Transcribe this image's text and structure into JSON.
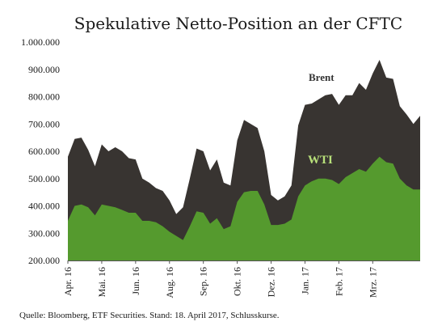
{
  "chart_data": {
    "type": "area",
    "title": "Spekulative Netto-Position an der CFTC",
    "xlabel": "",
    "ylabel": "",
    "ylim": [
      200000,
      1000000
    ],
    "yticks": [
      "200.000",
      "300.000",
      "400.000",
      "500.000",
      "600.000",
      "700.000",
      "800.000",
      "900.000",
      "1.000.000"
    ],
    "ytick_values": [
      200000,
      300000,
      400000,
      500000,
      600000,
      700000,
      800000,
      900000,
      1000000
    ],
    "x_tick_labels": [
      {
        "label": "Apr. 16",
        "index": 0
      },
      {
        "label": "Mai. 16",
        "index": 5
      },
      {
        "label": "Jun. 16",
        "index": 10
      },
      {
        "label": "Aug. 16",
        "index": 15
      },
      {
        "label": "Sep. 16",
        "index": 20
      },
      {
        "label": "Okt. 16",
        "index": 25
      },
      {
        "label": "Dez. 16",
        "index": 30
      },
      {
        "label": "Jan. 17",
        "index": 35
      },
      {
        "label": "Feb. 17",
        "index": 40
      },
      {
        "label": "Mrz. 17",
        "index": 45
      }
    ],
    "grid": false,
    "series": [
      {
        "name": "Brent",
        "color": "#383431",
        "values": [
          580000,
          645000,
          650000,
          605000,
          545000,
          625000,
          600000,
          615000,
          600000,
          575000,
          570000,
          500000,
          485000,
          465000,
          455000,
          420000,
          370000,
          395000,
          500000,
          610000,
          600000,
          530000,
          570000,
          485000,
          475000,
          640000,
          715000,
          700000,
          685000,
          600000,
          440000,
          420000,
          435000,
          475000,
          695000,
          770000,
          775000,
          790000,
          805000,
          810000,
          770000,
          805000,
          805000,
          850000,
          825000,
          885000,
          935000,
          870000,
          865000,
          765000,
          735000,
          700000,
          730000
        ]
      },
      {
        "name": "WTI",
        "color": "#559a2e",
        "values": [
          345000,
          400000,
          405000,
          395000,
          365000,
          405000,
          400000,
          395000,
          385000,
          375000,
          375000,
          345000,
          345000,
          340000,
          325000,
          305000,
          290000,
          275000,
          325000,
          380000,
          375000,
          335000,
          355000,
          315000,
          325000,
          415000,
          450000,
          455000,
          455000,
          405000,
          330000,
          330000,
          335000,
          350000,
          435000,
          475000,
          490000,
          500000,
          500000,
          495000,
          480000,
          505000,
          520000,
          535000,
          525000,
          555000,
          580000,
          560000,
          555000,
          500000,
          475000,
          460000,
          460000
        ]
      }
    ],
    "annotations": [
      {
        "text": "Brent",
        "series": "Brent"
      },
      {
        "text": "WTI",
        "series": "WTI"
      }
    ]
  },
  "source": "Quelle: Bloomberg, ETF Securities. Stand: 18. April 2017, Schlusskurse."
}
